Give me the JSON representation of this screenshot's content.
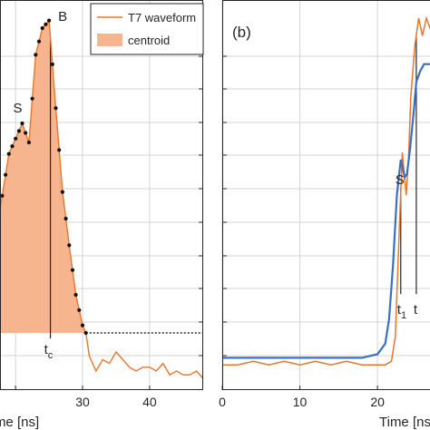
{
  "colors": {
    "orange": "#e8762b",
    "fill": "#f6b48f",
    "blue": "#3a6fc4",
    "axis": "#262626",
    "grid": "#d4d4d4"
  },
  "chart_data": [
    {
      "panel": "a",
      "type": "line",
      "xlabel": "Time [ns]",
      "xlim": [
        17,
        48
      ],
      "ylim": [
        0,
        1
      ],
      "grid": true,
      "legend_position": "top-right",
      "xticks": [
        20,
        30,
        40
      ],
      "xtick_labels": [
        "",
        "30",
        "40"
      ],
      "series": [
        {
          "name": "T7 waveform",
          "x": [
            17,
            18,
            19,
            20,
            21,
            22,
            23,
            24,
            25,
            26,
            27,
            28,
            29,
            30,
            30.5,
            31,
            32,
            33,
            34,
            35,
            36,
            37,
            38,
            39,
            40,
            41,
            42,
            43,
            44,
            45,
            46,
            47,
            48
          ],
          "y": [
            0.4,
            0.51,
            0.62,
            0.66,
            0.7,
            0.65,
            0.88,
            0.95,
            0.97,
            0.74,
            0.52,
            0.38,
            0.25,
            0.17,
            0.15,
            0.09,
            0.05,
            0.08,
            0.07,
            0.1,
            0.08,
            0.06,
            0.05,
            0.06,
            0.06,
            0.05,
            0.07,
            0.04,
            0.05,
            0.04,
            0.04,
            0.05,
            0.03
          ]
        }
      ],
      "centroid": {
        "name": "centroid",
        "x_end": 30.5,
        "baseline_y": 0.15,
        "marker_x": 25.2
      },
      "annotations": [
        {
          "text": "S",
          "x": 21.0
        },
        {
          "text": "B",
          "x": 25.0
        },
        {
          "text": "t",
          "sub": "c",
          "x": 25.2
        }
      ]
    },
    {
      "panel": "b",
      "label": "(b)",
      "type": "line",
      "xlabel": "Time [ns]",
      "xlim": [
        0,
        27
      ],
      "ylim": [
        0,
        1
      ],
      "grid": true,
      "xticks": [
        0,
        10,
        20
      ],
      "xtick_labels": [
        "0",
        "10",
        "20"
      ],
      "series": [
        {
          "color_key": "orange",
          "x": [
            0,
            2,
            4,
            6,
            8,
            10,
            12,
            14,
            16,
            18,
            20,
            21,
            21.8,
            22.3,
            22.8,
            23.2,
            23.7,
            24.0,
            24.3,
            24.8,
            25.3,
            25.8,
            26.3,
            26.8,
            27.1
          ],
          "y": [
            0.02,
            0.02,
            0.03,
            0.02,
            0.03,
            0.02,
            0.03,
            0.02,
            0.03,
            0.02,
            0.02,
            0.02,
            0.03,
            0.1,
            0.4,
            0.62,
            0.5,
            0.6,
            0.78,
            0.92,
            1.0,
            0.95,
            1.0,
            0.97,
            0.95
          ]
        },
        {
          "color_key": "blue",
          "x": [
            0,
            5,
            10,
            15,
            18,
            20,
            21,
            21.5,
            22,
            22.5,
            23,
            23.5,
            23.8,
            24.2,
            24.6,
            25.0,
            25.5,
            26.0,
            26.5,
            27.1
          ],
          "y": [
            0.04,
            0.04,
            0.04,
            0.04,
            0.04,
            0.05,
            0.08,
            0.15,
            0.3,
            0.5,
            0.6,
            0.55,
            0.56,
            0.63,
            0.72,
            0.82,
            0.85,
            0.87,
            0.87,
            0.87
          ]
        }
      ],
      "annotations": [
        {
          "text": "S",
          "x": 23.0
        },
        {
          "text": "t",
          "sub": "1",
          "x": 23.0
        },
        {
          "text": "t",
          "sub": "",
          "x": 25.0
        }
      ]
    }
  ]
}
